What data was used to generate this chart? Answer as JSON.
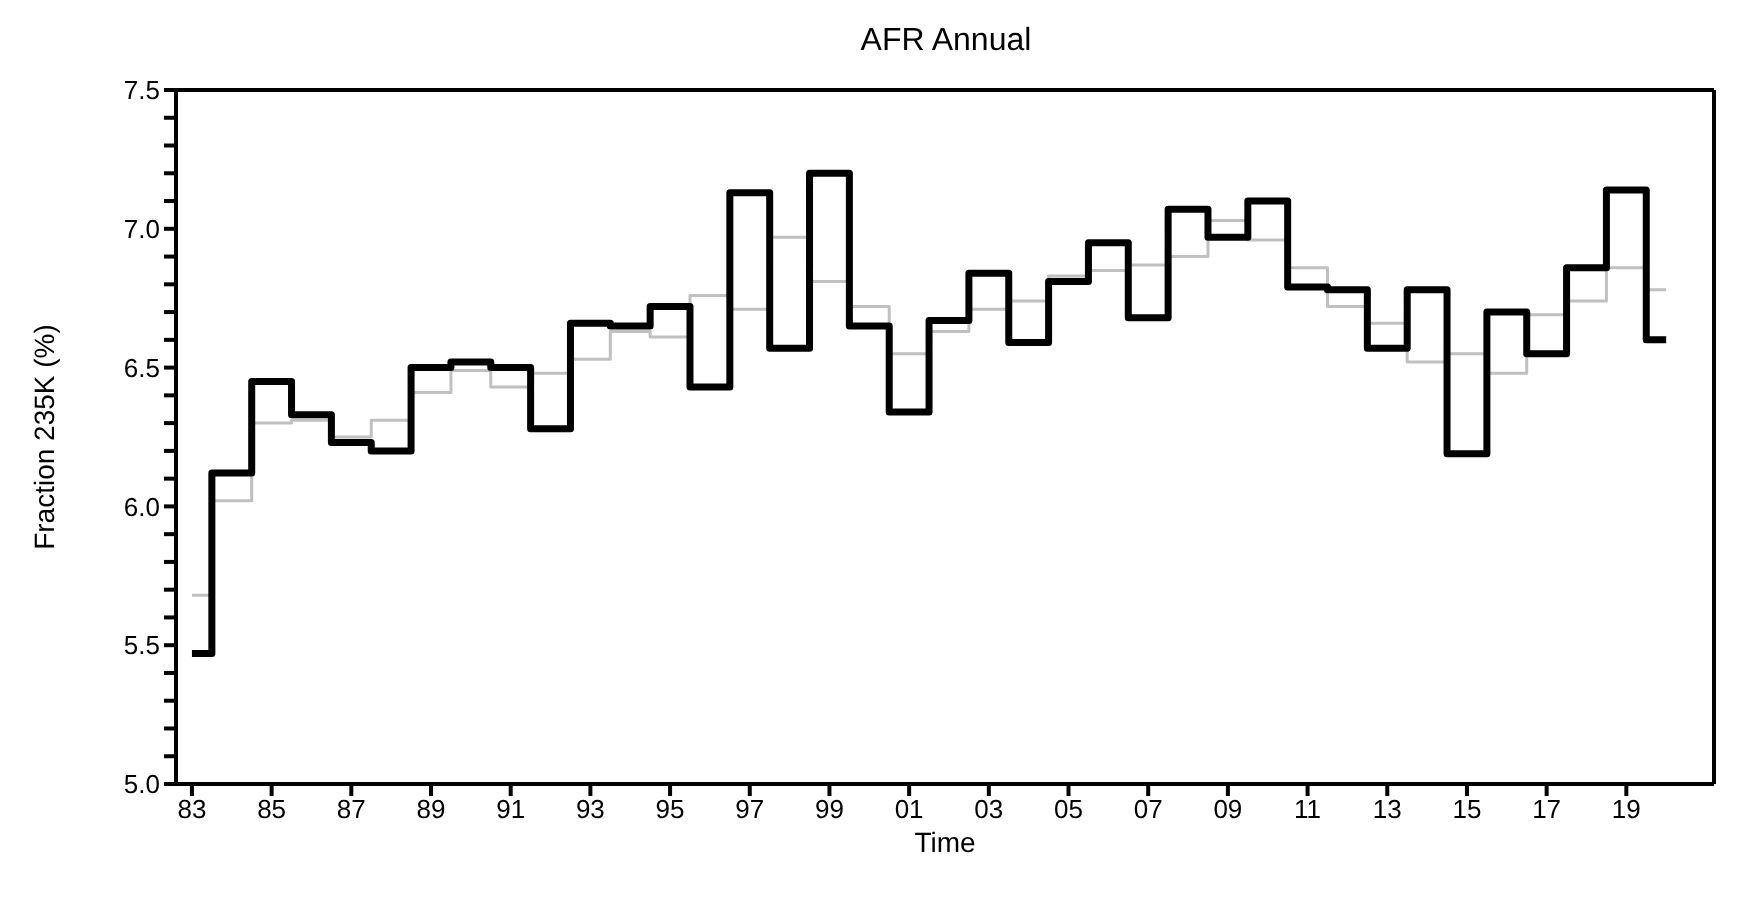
{
  "chart_data": {
    "type": "step",
    "title": "AFR Annual",
    "xlabel": "Time",
    "ylabel": "Fraction 235K (%)",
    "x": [
      1983,
      1984,
      1985,
      1986,
      1987,
      1988,
      1989,
      1990,
      1991,
      1992,
      1993,
      1994,
      1995,
      1996,
      1997,
      1998,
      1999,
      2000,
      2001,
      2002,
      2003,
      2004,
      2005,
      2006,
      2007,
      2008,
      2009,
      2010,
      2011,
      2012,
      2013,
      2014,
      2015,
      2016,
      2017,
      2018,
      2019,
      2020
    ],
    "series": [
      {
        "color": "#c0c0c0",
        "values": [
          5.68,
          6.02,
          6.3,
          6.31,
          6.25,
          6.31,
          6.41,
          6.49,
          6.43,
          6.48,
          6.53,
          6.63,
          6.61,
          6.76,
          6.71,
          6.97,
          6.81,
          6.72,
          6.55,
          6.63,
          6.71,
          6.74,
          6.83,
          6.85,
          6.87,
          6.9,
          7.03,
          6.96,
          6.86,
          6.72,
          6.66,
          6.52,
          6.55,
          6.48,
          6.69,
          6.74,
          6.86,
          6.78
        ]
      },
      {
        "color": "#000000",
        "values": [
          5.47,
          6.12,
          6.45,
          6.33,
          6.23,
          6.2,
          6.5,
          6.52,
          6.5,
          6.28,
          6.66,
          6.65,
          6.72,
          6.43,
          7.13,
          6.57,
          7.2,
          6.65,
          6.34,
          6.67,
          6.84,
          6.59,
          6.81,
          6.95,
          6.68,
          7.07,
          6.97,
          7.1,
          6.79,
          6.78,
          6.57,
          6.78,
          6.19,
          6.7,
          6.55,
          6.86,
          7.14,
          6.6
        ]
      }
    ],
    "xlim": [
      1982.6,
      2021.2
    ],
    "xticks": [
      {
        "value": 1983,
        "label": "83"
      },
      {
        "value": 1985,
        "label": "85"
      },
      {
        "value": 1987,
        "label": "87"
      },
      {
        "value": 1989,
        "label": "89"
      },
      {
        "value": 1991,
        "label": "91"
      },
      {
        "value": 1993,
        "label": "93"
      },
      {
        "value": 1995,
        "label": "95"
      },
      {
        "value": 1997,
        "label": "97"
      },
      {
        "value": 1999,
        "label": "99"
      },
      {
        "value": 2001,
        "label": "01"
      },
      {
        "value": 2003,
        "label": "03"
      },
      {
        "value": 2005,
        "label": "05"
      },
      {
        "value": 2007,
        "label": "07"
      },
      {
        "value": 2009,
        "label": "09"
      },
      {
        "value": 2011,
        "label": "11"
      },
      {
        "value": 2013,
        "label": "13"
      },
      {
        "value": 2015,
        "label": "15"
      },
      {
        "value": 2017,
        "label": "17"
      },
      {
        "value": 2019,
        "label": "19"
      }
    ],
    "ylim": [
      5.0,
      7.5
    ],
    "yticks": [
      {
        "value": 5.0,
        "label": "5.0"
      },
      {
        "value": 5.1,
        "label": null
      },
      {
        "value": 5.2,
        "label": null
      },
      {
        "value": 5.3,
        "label": null
      },
      {
        "value": 5.4,
        "label": null
      },
      {
        "value": 5.5,
        "label": "5.5"
      },
      {
        "value": 5.6,
        "label": null
      },
      {
        "value": 5.7,
        "label": null
      },
      {
        "value": 5.8,
        "label": null
      },
      {
        "value": 5.9,
        "label": null
      },
      {
        "value": 6.0,
        "label": "6.0"
      },
      {
        "value": 6.1,
        "label": null
      },
      {
        "value": 6.2,
        "label": null
      },
      {
        "value": 6.3,
        "label": null
      },
      {
        "value": 6.4,
        "label": null
      },
      {
        "value": 6.5,
        "label": "6.5"
      },
      {
        "value": 6.6,
        "label": null
      },
      {
        "value": 6.7,
        "label": null
      },
      {
        "value": 6.8,
        "label": null
      },
      {
        "value": 6.9,
        "label": null
      },
      {
        "value": 7.0,
        "label": "7.0"
      },
      {
        "value": 7.1,
        "label": null
      },
      {
        "value": 7.2,
        "label": null
      },
      {
        "value": 7.3,
        "label": null
      },
      {
        "value": 7.4,
        "label": null
      },
      {
        "value": 7.5,
        "label": "7.5"
      }
    ]
  }
}
